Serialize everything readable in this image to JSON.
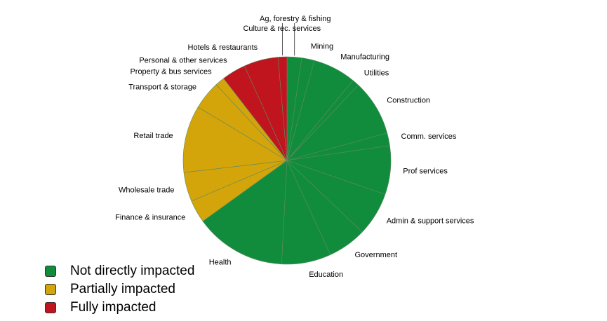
{
  "chart_data": {
    "type": "pie",
    "title": "",
    "start_angle_deg": 0,
    "direction": "clockwise",
    "categories": [
      "Ag, forestry & fishing",
      "Mining",
      "Manufacturing",
      "Utilities",
      "Construction",
      "Comm. services",
      "Prof services",
      "Admin  & support services",
      "Government",
      "Education",
      "Health",
      "Finance & insurance",
      "Wholesale trade",
      "Retail trade",
      "Transport & storage",
      "Property & bus services",
      "Personal & other services",
      "Hotels & restaurants",
      "Culture & rec. services"
    ],
    "values": [
      2.3,
      2.0,
      6.8,
      1.1,
      8.8,
      2.0,
      7.7,
      6.9,
      6.1,
      7.8,
      14.4,
      3.6,
      4.6,
      10.6,
      4.5,
      1.5,
      3.8,
      5.4,
      1.4
    ],
    "groups": [
      "not",
      "not",
      "not",
      "not",
      "not",
      "not",
      "not",
      "not",
      "not",
      "not",
      "not",
      "partial",
      "partial",
      "partial",
      "partial",
      "partial",
      "full",
      "full",
      "full"
    ],
    "group_colors": {
      "not": "#118c3d",
      "partial": "#d4a40b",
      "full": "#c0141f"
    },
    "slice_edge_color": "#5f8c5f",
    "legend": [
      {
        "key": "not",
        "label": "Not directly impacted",
        "color": "#118c3d"
      },
      {
        "key": "partial",
        "label": "Partially impacted",
        "color": "#d4a40b"
      },
      {
        "key": "full",
        "label": "Fully impacted",
        "color": "#c0141f"
      }
    ],
    "legend_position": "bottom-left"
  }
}
